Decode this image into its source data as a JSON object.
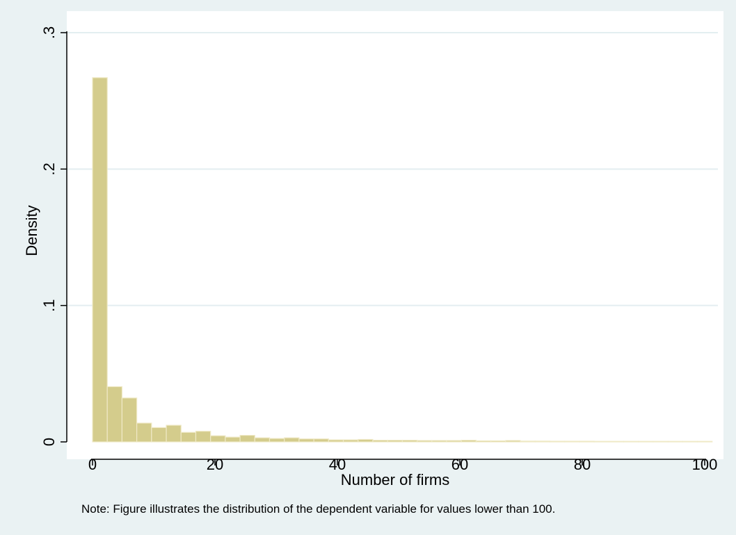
{
  "chart_data": {
    "type": "bar",
    "title": "",
    "xlabel": "Number of firms",
    "ylabel": "Density",
    "note": "Note: Figure illustrates the distribution of the dependent variable for values lower than 100.",
    "xlim": [
      0,
      100
    ],
    "ylim": [
      0,
      0.3
    ],
    "x_ticks": [
      0,
      20,
      40,
      60,
      80,
      100
    ],
    "x_tick_labels": [
      "0",
      "20",
      "40",
      "60",
      "80",
      "100"
    ],
    "y_ticks": [
      0,
      0.1,
      0.2,
      0.3
    ],
    "y_tick_labels": [
      "0",
      ".1",
      ".2",
      ".3"
    ],
    "grid": true,
    "bin_width": 2.41,
    "bin_start": 0,
    "values": [
      0.267,
      0.0405,
      0.0322,
      0.0138,
      0.0105,
      0.0122,
      0.007,
      0.0078,
      0.0045,
      0.0035,
      0.0048,
      0.003,
      0.0025,
      0.003,
      0.0022,
      0.0022,
      0.0015,
      0.0015,
      0.0018,
      0.0012,
      0.0012,
      0.0012,
      0.001,
      0.001,
      0.001,
      0.0012,
      0.0008,
      0.0008,
      0.001,
      0.0006,
      0.0006,
      0.0005,
      0.0005,
      0.0005,
      0.0004,
      0.0004,
      0.0004,
      0.0004,
      0.0004,
      0.0004,
      0.0004,
      0.0004
    ],
    "colors": {
      "bar_fill": "#d4cc8c",
      "bar_stroke": "#efe9c6",
      "plot_background": "#ffffff",
      "outer_background": "#eaf2f3",
      "grid": "#e3eef0"
    }
  }
}
